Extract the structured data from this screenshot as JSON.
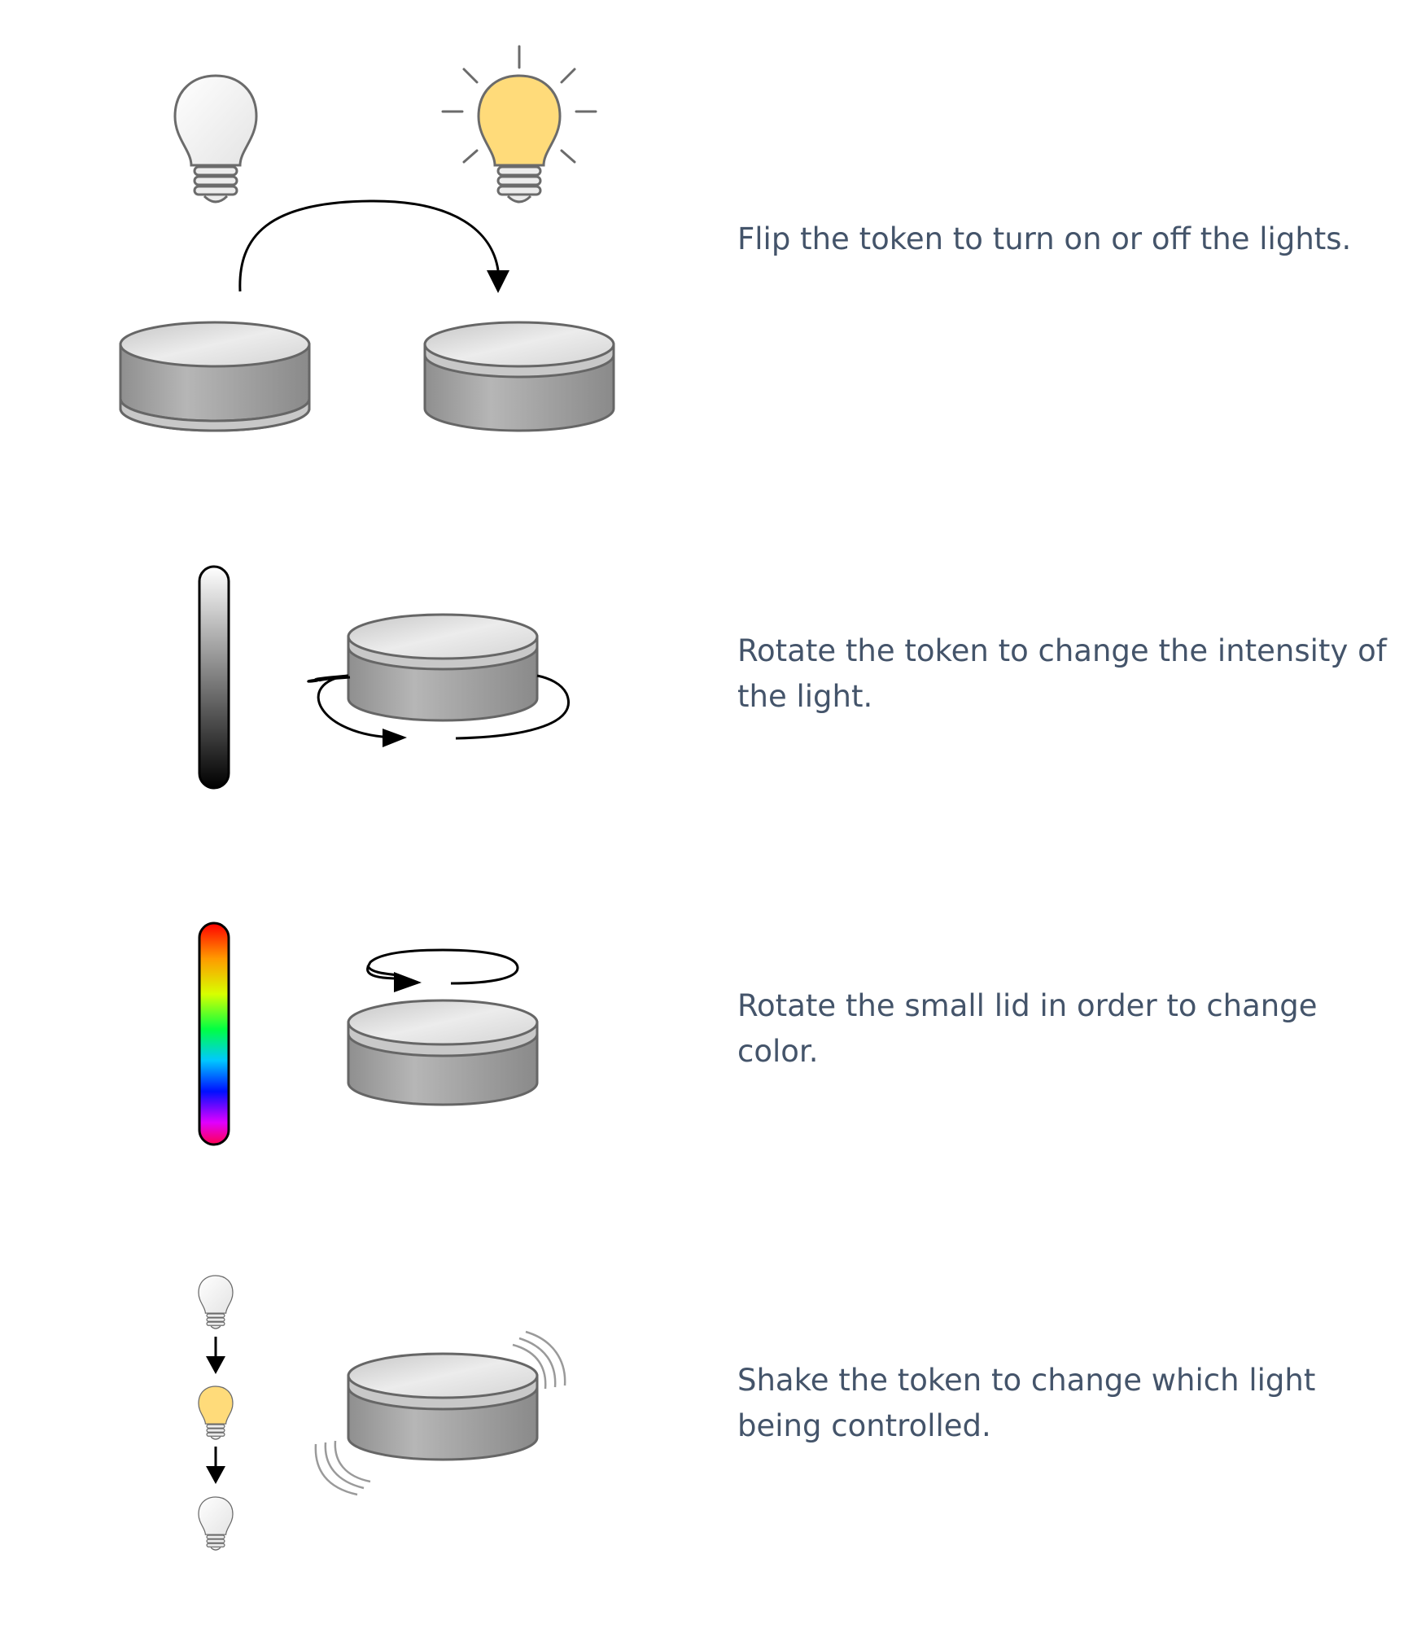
{
  "instructions": [
    {
      "id": "flip",
      "text": "Flip the token to turn on or off the lights."
    },
    {
      "id": "rotate",
      "text": "Rotate the token to change the intensity of the light."
    },
    {
      "id": "lid",
      "text": "Rotate the small lid in order to change color."
    },
    {
      "id": "shake",
      "text": "Shake the token to change which light being controlled."
    }
  ],
  "colors": {
    "text": "#44546a",
    "bulb_off": "#f4f4f4",
    "bulb_on": "#ffdb7a",
    "token_side": "#a8a8a8",
    "token_top": "#e0e0e0",
    "outline": "#666666"
  },
  "icons": [
    "light-bulb-off-icon",
    "light-bulb-on-icon",
    "flip-arrow-icon",
    "rotate-arrow-icon",
    "shake-lines-icon",
    "down-arrow-icon"
  ]
}
